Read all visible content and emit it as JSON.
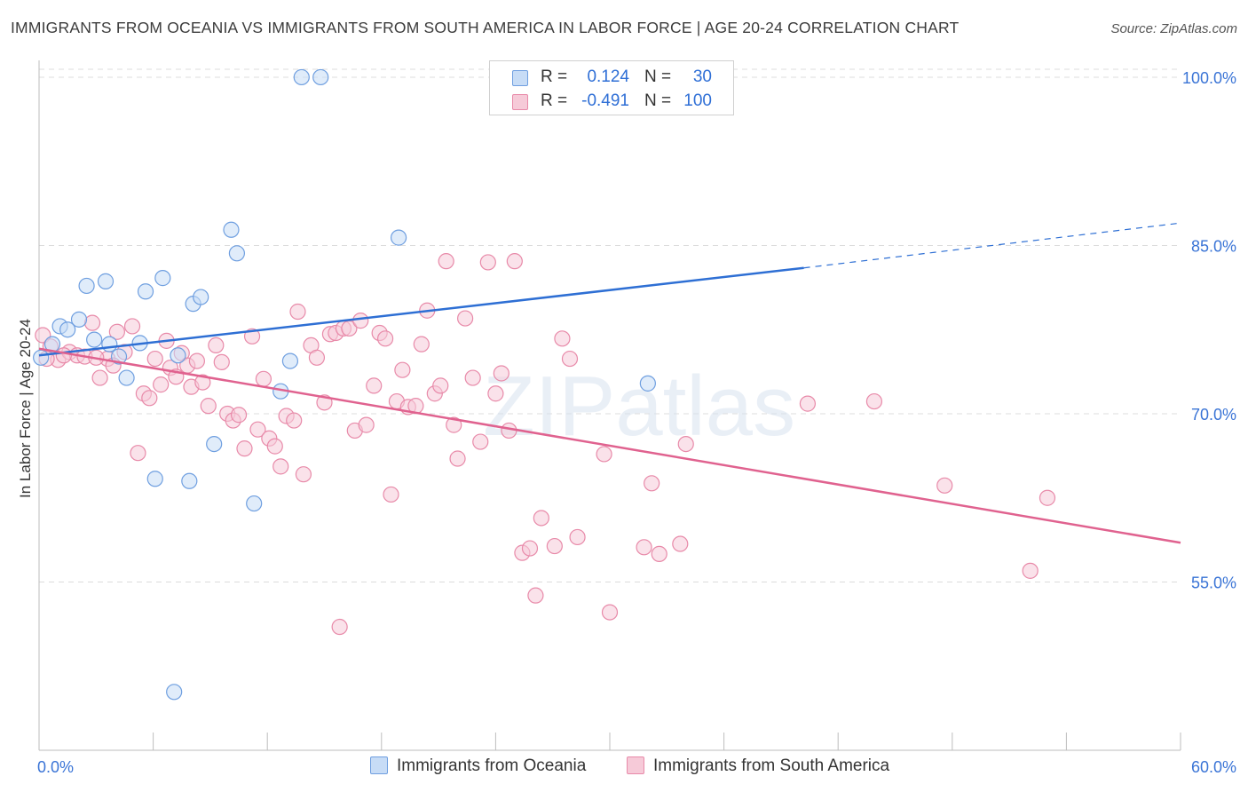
{
  "chart_data": {
    "type": "scatter",
    "title": "IMMIGRANTS FROM OCEANIA VS IMMIGRANTS FROM SOUTH AMERICA IN LABOR FORCE | AGE 20-24 CORRELATION CHART",
    "source": "Source: ZipAtlas.com",
    "xlabel": "",
    "ylabel": "In Labor Force | Age 20-24",
    "xlim": [
      0,
      60
    ],
    "ylim": [
      40,
      101.5
    ],
    "x_tick_labels": [
      "0.0%",
      "60.0%"
    ],
    "y_ticks": [
      55,
      70,
      85,
      100
    ],
    "y_tick_labels": [
      "55.0%",
      "70.0%",
      "85.0%",
      "100.0%"
    ],
    "grid": true,
    "watermark": "ZIPatlas",
    "legend": {
      "rows": [
        {
          "r_label": "R =",
          "r_value": "0.124",
          "n_label": "N =",
          "n_value": "30"
        },
        {
          "r_label": "R =",
          "r_value": "-0.491",
          "n_label": "N =",
          "n_value": "100"
        }
      ]
    },
    "series": [
      {
        "name": "Immigrants from Oceania",
        "color": "#6f9fe0",
        "fill": "#c7dcf6",
        "line_color": "#2e6fd4",
        "trend": {
          "x0": 0,
          "y0": 75.2,
          "x1": 40.2,
          "y1": 83.0,
          "dash_to_x": 60,
          "dash_to_y": 87.0
        },
        "points": [
          [
            0.1,
            75.0
          ],
          [
            0.7,
            76.2
          ],
          [
            1.1,
            77.8
          ],
          [
            1.5,
            77.5
          ],
          [
            2.1,
            78.4
          ],
          [
            2.5,
            81.4
          ],
          [
            3.5,
            81.8
          ],
          [
            2.9,
            76.6
          ],
          [
            3.7,
            76.2
          ],
          [
            4.2,
            75.1
          ],
          [
            4.6,
            73.2
          ],
          [
            5.3,
            76.3
          ],
          [
            5.6,
            80.9
          ],
          [
            6.1,
            64.2
          ],
          [
            6.5,
            82.1
          ],
          [
            7.1,
            45.2
          ],
          [
            7.3,
            75.2
          ],
          [
            7.9,
            64.0
          ],
          [
            8.1,
            79.8
          ],
          [
            8.5,
            80.4
          ],
          [
            9.2,
            67.3
          ],
          [
            10.1,
            86.4
          ],
          [
            10.4,
            84.3
          ],
          [
            11.3,
            62.0
          ],
          [
            12.7,
            72.0
          ],
          [
            13.2,
            74.7
          ],
          [
            13.8,
            100.0
          ],
          [
            14.8,
            100.0
          ],
          [
            18.9,
            85.7
          ],
          [
            32.0,
            72.7
          ]
        ]
      },
      {
        "name": "Immigrants from South America",
        "color": "#e88aa9",
        "fill": "#f6cad8",
        "line_color": "#e0628f",
        "trend": {
          "x0": 0,
          "y0": 75.8,
          "x1": 60,
          "y1": 58.5
        },
        "points": [
          [
            0.2,
            77.0
          ],
          [
            0.6,
            76.0
          ],
          [
            1.0,
            74.8
          ],
          [
            1.6,
            75.5
          ],
          [
            2.0,
            75.2
          ],
          [
            2.4,
            75.1
          ],
          [
            2.8,
            78.1
          ],
          [
            3.2,
            73.2
          ],
          [
            3.6,
            74.9
          ],
          [
            3.9,
            74.3
          ],
          [
            4.1,
            77.3
          ],
          [
            4.5,
            75.5
          ],
          [
            4.9,
            77.8
          ],
          [
            5.2,
            66.5
          ],
          [
            5.5,
            71.8
          ],
          [
            5.8,
            71.4
          ],
          [
            6.1,
            74.9
          ],
          [
            6.4,
            72.6
          ],
          [
            6.7,
            76.5
          ],
          [
            6.9,
            74.1
          ],
          [
            7.2,
            73.3
          ],
          [
            7.5,
            75.4
          ],
          [
            7.8,
            74.3
          ],
          [
            8.0,
            72.4
          ],
          [
            8.3,
            74.7
          ],
          [
            8.6,
            72.8
          ],
          [
            8.9,
            70.7
          ],
          [
            9.3,
            76.1
          ],
          [
            9.6,
            74.6
          ],
          [
            9.9,
            70.0
          ],
          [
            10.2,
            69.4
          ],
          [
            10.5,
            69.9
          ],
          [
            10.8,
            66.9
          ],
          [
            11.2,
            76.9
          ],
          [
            11.5,
            68.6
          ],
          [
            11.8,
            73.1
          ],
          [
            12.1,
            67.8
          ],
          [
            12.4,
            67.1
          ],
          [
            12.7,
            65.3
          ],
          [
            13.0,
            69.8
          ],
          [
            13.4,
            69.4
          ],
          [
            13.6,
            79.1
          ],
          [
            13.9,
            64.6
          ],
          [
            14.3,
            76.1
          ],
          [
            14.6,
            75.0
          ],
          [
            15.0,
            71.0
          ],
          [
            15.3,
            77.1
          ],
          [
            15.6,
            77.2
          ],
          [
            15.8,
            51.0
          ],
          [
            16.0,
            77.6
          ],
          [
            16.3,
            77.6
          ],
          [
            16.6,
            68.5
          ],
          [
            16.9,
            78.3
          ],
          [
            17.2,
            69.0
          ],
          [
            17.6,
            72.5
          ],
          [
            17.9,
            77.2
          ],
          [
            18.2,
            76.7
          ],
          [
            18.5,
            62.8
          ],
          [
            18.8,
            71.1
          ],
          [
            19.1,
            73.9
          ],
          [
            19.4,
            70.6
          ],
          [
            19.8,
            70.7
          ],
          [
            20.1,
            76.2
          ],
          [
            20.4,
            79.2
          ],
          [
            20.8,
            71.8
          ],
          [
            21.1,
            72.5
          ],
          [
            21.4,
            83.6
          ],
          [
            21.8,
            69.0
          ],
          [
            22.0,
            66.0
          ],
          [
            22.4,
            78.5
          ],
          [
            22.8,
            73.2
          ],
          [
            23.2,
            67.5
          ],
          [
            23.6,
            83.5
          ],
          [
            24.0,
            71.8
          ],
          [
            24.3,
            73.6
          ],
          [
            24.7,
            68.5
          ],
          [
            25.0,
            83.6
          ],
          [
            25.4,
            57.6
          ],
          [
            25.8,
            58.0
          ],
          [
            26.1,
            53.8
          ],
          [
            26.4,
            60.7
          ],
          [
            27.1,
            58.2
          ],
          [
            27.5,
            76.7
          ],
          [
            27.9,
            74.9
          ],
          [
            28.3,
            59.0
          ],
          [
            29.7,
            66.4
          ],
          [
            30.0,
            52.3
          ],
          [
            31.8,
            58.1
          ],
          [
            32.2,
            63.8
          ],
          [
            32.6,
            57.5
          ],
          [
            33.7,
            58.4
          ],
          [
            34.0,
            67.3
          ],
          [
            40.4,
            70.9
          ],
          [
            43.9,
            71.1
          ],
          [
            47.6,
            63.6
          ],
          [
            52.1,
            56.0
          ],
          [
            53.0,
            62.5
          ],
          [
            0.4,
            74.9
          ],
          [
            1.3,
            75.2
          ],
          [
            3.0,
            75.0
          ]
        ]
      }
    ]
  }
}
